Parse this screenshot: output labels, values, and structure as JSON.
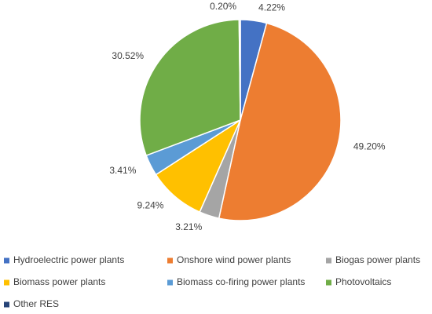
{
  "chart_data": {
    "type": "pie",
    "categories": [
      "Hydroelectric power plants",
      "Onshore wind power plants",
      "Biogas power plants",
      "Biomass power plants",
      "Biomass co-firing power plants",
      "Photovoltaics",
      "Other RES"
    ],
    "values": [
      4.22,
      49.2,
      3.21,
      9.24,
      3.41,
      30.52,
      0.2
    ],
    "value_labels": [
      "4.22%",
      "49.20%",
      "3.21%",
      "9.24%",
      "3.41%",
      "30.52%",
      "0.20%"
    ],
    "colors": [
      "#4472c4",
      "#ed7d31",
      "#a5a5a5",
      "#ffc000",
      "#5b9bd5",
      "#70ad47",
      "#264478"
    ]
  }
}
